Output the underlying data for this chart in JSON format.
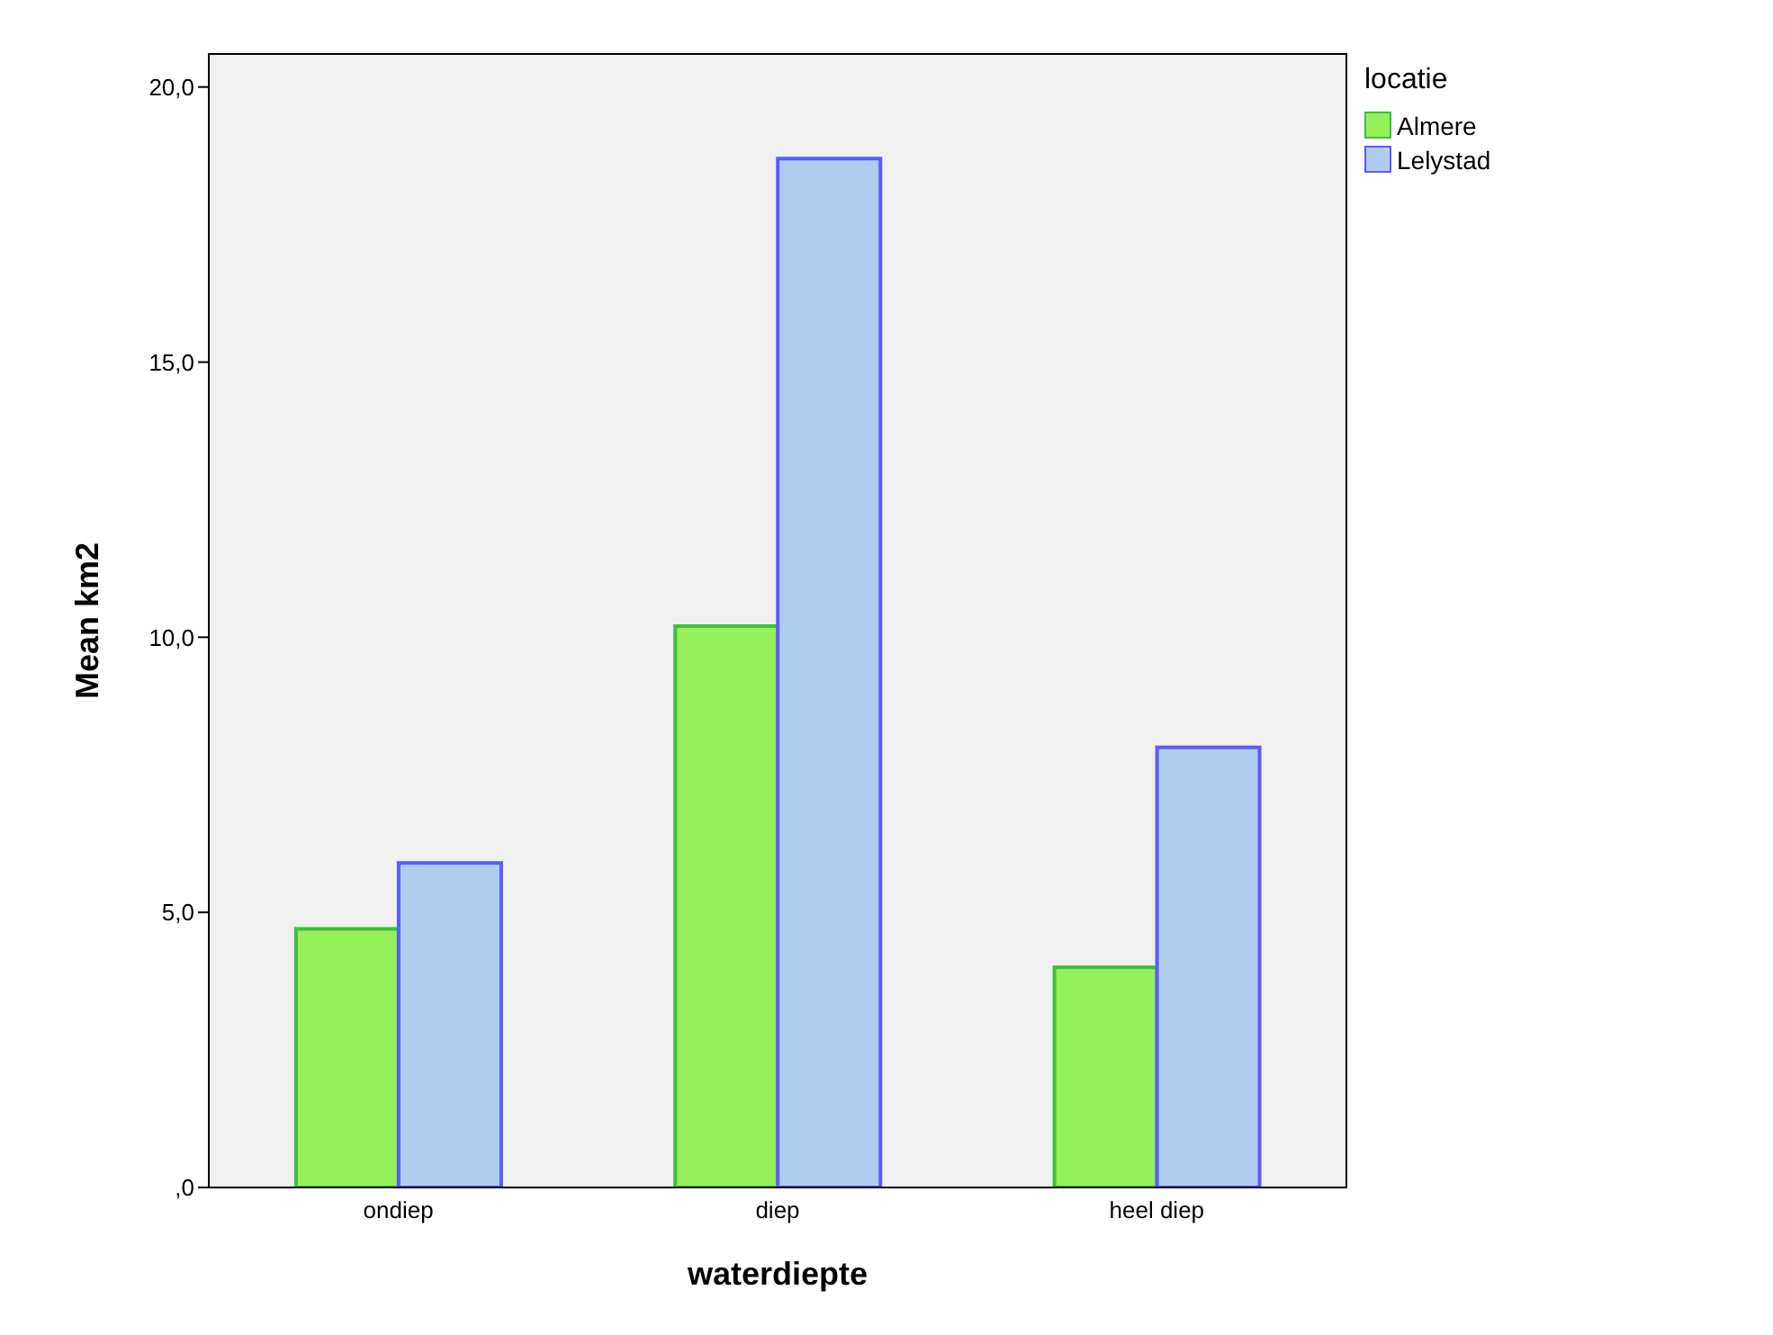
{
  "chart_data": {
    "type": "bar",
    "xlabel": "waterdiepte",
    "ylabel": "Mean km2",
    "legend_title": "locatie",
    "categories": [
      "ondiep",
      "diep",
      "heel diep"
    ],
    "series": [
      {
        "name": "Almere",
        "color": "#95f05a",
        "values": [
          4.7,
          10.2,
          4.0
        ]
      },
      {
        "name": "Lelystad",
        "color": "#aecdee",
        "values": [
          5.9,
          18.7,
          8.0
        ]
      }
    ],
    "ylim": [
      0,
      20.6
    ],
    "yticks": [
      {
        "value": 0,
        "label": ",0"
      },
      {
        "value": 5,
        "label": "5,0"
      },
      {
        "value": 10,
        "label": "10,0"
      },
      {
        "value": 15,
        "label": "15,0"
      },
      {
        "value": 20,
        "label": "20,0"
      }
    ],
    "legend": "top right"
  }
}
